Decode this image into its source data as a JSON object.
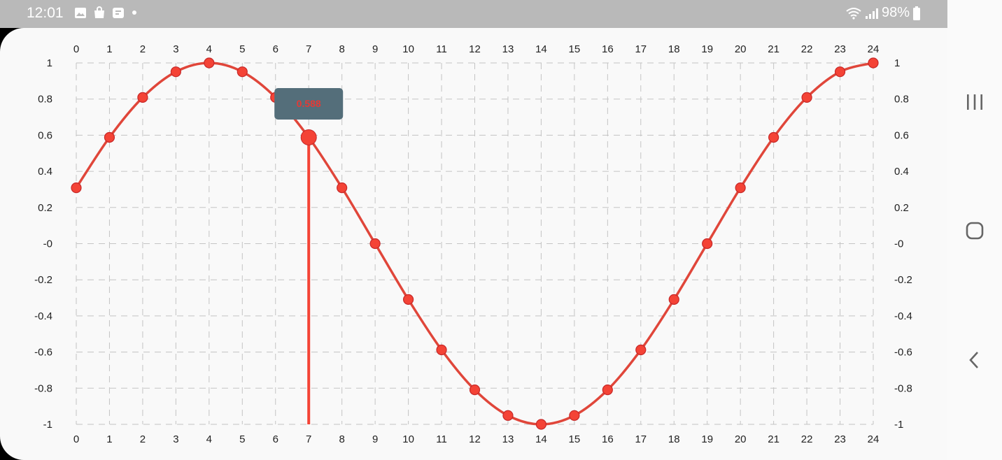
{
  "status_bar": {
    "time": "12:01",
    "battery": "98%",
    "left_icons": [
      "gallery-icon",
      "shopping-bag-icon",
      "clipboard-icon",
      "notification-dot-icon"
    ],
    "right_icons": [
      "wifi-icon",
      "signal-icon",
      "battery-icon"
    ]
  },
  "nav_bar": {
    "buttons": [
      "recent-apps-icon",
      "home-icon",
      "back-icon"
    ]
  },
  "tooltip": {
    "label": "0.588",
    "x": 7
  },
  "colors": {
    "series": "#e0463a",
    "marker": "#f44336",
    "tooltip_bg": "#546e7a",
    "grid": "#c4c4c4"
  },
  "chart_data": {
    "type": "line",
    "x": [
      0,
      1,
      2,
      3,
      4,
      5,
      6,
      7,
      8,
      9,
      10,
      11,
      12,
      13,
      14,
      15,
      16,
      17,
      18,
      19,
      20,
      21,
      22,
      23,
      24
    ],
    "x_tick_labels": [
      "0",
      "1",
      "2",
      "3",
      "4",
      "5",
      "6",
      "7",
      "8",
      "9",
      "10",
      "11",
      "12",
      "13",
      "14",
      "15",
      "16",
      "17",
      "18",
      "19",
      "20",
      "21",
      "22",
      "23",
      "24"
    ],
    "series": [
      {
        "values": [
          0.309,
          0.588,
          0.809,
          0.951,
          1.0,
          0.951,
          0.809,
          0.588,
          0.309,
          0.0,
          -0.309,
          -0.588,
          -0.809,
          -0.951,
          -1.0,
          -0.951,
          -0.809,
          -0.588,
          -0.309,
          0.0,
          0.309,
          0.588,
          0.809,
          0.951,
          1.0
        ]
      }
    ],
    "y_tick_labels": [
      "1",
      "0.8",
      "0.6",
      "0.4",
      "0.2",
      "-0",
      "-0.2",
      "-0.4",
      "-0.6",
      "-0.8",
      "-1"
    ],
    "y_tick_values": [
      1,
      0.8,
      0.6,
      0.4,
      0.2,
      0,
      -0.2,
      -0.4,
      -0.6,
      -0.8,
      -1
    ],
    "xlim": [
      0,
      24
    ],
    "ylim": [
      -1,
      1
    ],
    "grid": true,
    "grid_style": "dashed",
    "axes": "top, bottom, left, right",
    "highlighted_index": 7,
    "title": "",
    "xlabel": "",
    "ylabel": ""
  }
}
